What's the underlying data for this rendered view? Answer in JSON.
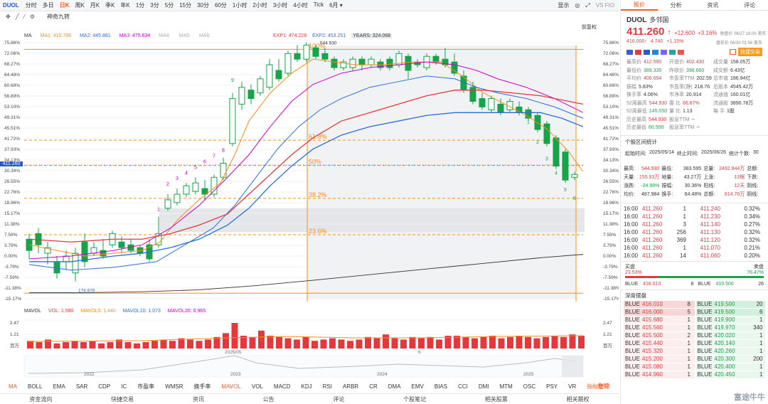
{
  "toolbar": {
    "code": "DUOL",
    "items": [
      "分时",
      "多日",
      "日K",
      "周K",
      "月K",
      "季K",
      "年K",
      "1分",
      "3分",
      "5分",
      "15分",
      "30分",
      "60分",
      "1小时",
      "2小时",
      "3小时",
      "4小时",
      "Tick",
      "6月 ▾"
    ],
    "active": "日K",
    "display": "显示",
    "right": "VS FIO"
  },
  "drawbar": {
    "nine": "神奇九转",
    "restore": "前复权"
  },
  "ma": {
    "label": "MA",
    "ma1": "MA1: 415.786",
    "ma2": "MA2: 445.881",
    "ma3": "MA3: 475.634",
    "ma4": "MA4:",
    "ma5": "MA5:",
    "ma6": "MA6:"
  },
  "exp": {
    "exp1": "EXP1: 474.228",
    "exp2": "EXP2: 453.251",
    "exp2b": "544.930",
    "years": "YEARS: 324.068"
  },
  "yaxis_left": [
    "75.86%",
    "72.06%",
    "68.27%",
    "64.48%",
    "60.68%",
    "56.89%",
    "53.10%",
    "49.31%",
    "45.51%",
    "41.72%",
    "37.93%",
    "34.13%",
    "30.34%",
    "26.55%",
    "22.76%",
    "18.96%",
    "15.17%",
    "11.38%",
    "7.59%",
    "3.79%",
    "0.00%",
    "-3.79%",
    "-7.59%",
    "-11.38%",
    "-15.17%"
  ],
  "yaxis_right": [
    "75.86%",
    "72.06%",
    "68.27%",
    "64.48%",
    "60.68%",
    "56.89%",
    "53.10%",
    "49.31%",
    "45.51%",
    "41.72%",
    "37.93%",
    "34.13%",
    "30.34%",
    "26.55%",
    "22.76%",
    "18.96%",
    "15.17%",
    "11.38%",
    "7.59%",
    "3.79%",
    "0.00%",
    "-3.79%",
    "-7.59%",
    "-11.38%",
    "-15.17%"
  ],
  "price_tag": "411.260",
  "fib": {
    "p100": "100%",
    "p618": "61.8%",
    "p50": "50%",
    "p382": "38.2%",
    "p236": "23.6%"
  },
  "low_label": "174.870",
  "td_up": [
    "1",
    "2",
    "3",
    "4",
    "5",
    "6",
    "7",
    "8",
    "9"
  ],
  "td_down": [
    "1",
    "2",
    "3",
    "4",
    "5",
    "6"
  ],
  "vol": {
    "label": "MAVOL",
    "vol": "VOL: 1.580",
    "mavol5": "MAVOL5: 1.440",
    "mavol10": "MAVOL10: 1.073",
    "mavol20": "MAVOL20: 0.965",
    "ticks_left": [
      "2.47",
      "1.21",
      "百万"
    ],
    "ticks_right": [
      "2.47",
      "1.21",
      "百万"
    ],
    "date1": "2025/05",
    "date2": "6"
  },
  "timeline": [
    "2022",
    "2023",
    "2024",
    "2025"
  ],
  "indicators": [
    "MA",
    "BOLL",
    "EMA",
    "SAR",
    "CDP",
    "IC",
    "市盈率",
    "WMSR",
    "换手率",
    "MAVOL",
    "VOL",
    "MACD",
    "KDJ",
    "RSI",
    "ARBR",
    "CR",
    "DMA",
    "EMV",
    "BIAS",
    "CCI",
    "DMI",
    "MTM",
    "OSC",
    "PSY",
    "VR",
    "指标管理"
  ],
  "indicators_right": [
    "叠加",
    "叠加"
  ],
  "bottom": [
    "资金流向",
    "快捷交易",
    "资讯",
    "公告",
    "评论",
    "个股笔记",
    "相关股票",
    "相关期权"
  ],
  "rp": {
    "tabs": [
      "报价",
      "分析",
      "资讯",
      "评论"
    ],
    "ticker": "DUOL",
    "name": "多邻国",
    "price": "411.260",
    "arrow": "↑",
    "chg": "+12.600",
    "pct": "+3.16%",
    "close_time": "收盘价 06/27 16:00 美东",
    "ah_price": "416.000↑",
    "ah_chg": "4.740",
    "ah_pct": "+1.15%",
    "ah_time": "盘前价 06/30 01:56 美东",
    "quick_trade": "快捷交易",
    "stats": [
      [
        "最高价",
        "412.590",
        "开盘价",
        "402.430",
        "成交量",
        "158.05万"
      ],
      [
        "最低价",
        "389.335",
        "昨收价",
        "398.660",
        "成交额",
        "6.43亿"
      ],
      [
        "平均价",
        "406.654",
        "市盈率TTM",
        "202.59",
        "总市值",
        "186.94亿"
      ],
      [
        "振幅",
        "5.83%",
        "市盈率(静)",
        "218.76",
        "总股本",
        "4545.42万"
      ],
      [
        "换手率",
        "4.06%",
        "市净率",
        "20.914",
        "流通值",
        "160.01亿"
      ],
      [
        "52周最高",
        "544.930",
        "委 比",
        "66.67%",
        "流通股",
        "3890.78万"
      ],
      [
        "52周最低",
        "145.050",
        "量 比",
        "1.13",
        "每 手",
        "1股"
      ],
      [
        "历史最高",
        "544.930",
        "股息TTM",
        "--",
        "",
        ""
      ],
      [
        "历史最低",
        "60.500",
        "股息率TTM",
        "--",
        "",
        ""
      ]
    ],
    "interval_title": "个股区间统计",
    "interval": {
      "start_l": "起始时间:",
      "start": "2025/05/14",
      "end_l": "终止时间:",
      "end": "2025/06/26",
      "count_l": "统计个数:",
      "count": "30"
    },
    "ist": [
      [
        "最高:",
        "544.930",
        "最低:",
        "383.595",
        "总量:",
        "2492.844万",
        "总额:"
      ],
      [
        "天量:",
        "155.93万",
        "地量:",
        "43.27万",
        "上涨:",
        "13根",
        "下跌:"
      ],
      [
        "涨跌:",
        "-24.99%",
        "振幅:",
        "30.36%",
        "阳线:",
        "12天",
        "阴线:"
      ],
      [
        "均价:",
        "487.984",
        "换手:",
        "64.48%",
        "总额:",
        "814.76万",
        "阴线:"
      ]
    ],
    "ticks": [
      [
        "16:00",
        "411.260",
        "1",
        "411.240",
        "0.32%"
      ],
      [
        "16:00",
        "411.260",
        "1",
        "411.230",
        "0.34%"
      ],
      [
        "16:00",
        "411.260",
        "3",
        "411.140",
        "0.27%"
      ],
      [
        "16:00",
        "411.260",
        "256",
        "411.130",
        "0.32%"
      ],
      [
        "16:00",
        "411.260",
        "369",
        "411.120",
        "0.32%"
      ],
      [
        "16:00",
        "411.260",
        "1",
        "411.070",
        "0.21%"
      ],
      [
        "16:00",
        "411.260",
        "14",
        "411.060",
        "0.20%"
      ]
    ],
    "buy": "买盘",
    "sell": "卖盘",
    "buy_pct": "23.53%",
    "sell_pct": "76.47%",
    "bid": {
      "ex": "BLUE",
      "p": "416.010",
      "q": "8"
    },
    "ask": {
      "ex": "BLUE",
      "p": "419.500",
      "q": "26"
    },
    "depth_title": "深度摆盘",
    "depth": [
      [
        "BLUE",
        "416.010",
        "8",
        "BLUE",
        "419.500",
        "20"
      ],
      [
        "BLUE",
        "416.000",
        "5",
        "BLUE",
        "419.500",
        "6"
      ],
      [
        "BLUE",
        "415.680",
        "1",
        "BLUE",
        "419.900",
        "1"
      ],
      [
        "BLUE",
        "415.560",
        "1",
        "BLUE",
        "419.970",
        "340"
      ],
      [
        "BLUE",
        "415.500",
        "2",
        "BLUE",
        "420.020",
        "1"
      ],
      [
        "BLUE",
        "415.440",
        "1",
        "BLUE",
        "420.140",
        "1"
      ],
      [
        "BLUE",
        "415.320",
        "1",
        "BLUE",
        "420.260",
        "1"
      ],
      [
        "BLUE",
        "415.200",
        "1",
        "BLUE",
        "420.300",
        "200"
      ],
      [
        "BLUE",
        "415.080",
        "1",
        "BLUE",
        "420.400",
        "1"
      ],
      [
        "BLUE",
        "414.960",
        "1",
        "BLUE",
        "420.450",
        "1"
      ]
    ],
    "watermark": "富途牛牛"
  },
  "colors": {
    "up": "#e4393c",
    "down": "#16a34a",
    "accent": "#ff5a1f",
    "fib": "#ff8c1a",
    "ma1": "#ff8c1a",
    "ma2": "#2b6fd6",
    "ma3": "#cc00cc",
    "years": "#333333"
  }
}
